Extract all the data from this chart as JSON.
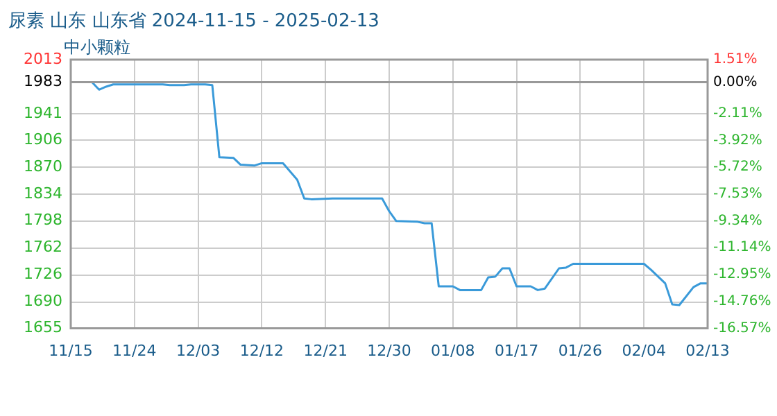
{
  "chart_data": {
    "type": "line",
    "title": "尿素 山东 山东省 2024-11-15 - 2025-02-13",
    "subtitle": "中小颗粒",
    "x": [
      "2024-11-15",
      "2024-11-18",
      "2024-11-19",
      "2024-11-20",
      "2024-11-21",
      "2024-11-28",
      "2024-11-29",
      "2024-12-01",
      "2024-12-02",
      "2024-12-04",
      "2024-12-05",
      "2024-12-06",
      "2024-12-08",
      "2024-12-09",
      "2024-12-11",
      "2024-12-12",
      "2024-12-15",
      "2024-12-17",
      "2024-12-18",
      "2024-12-19",
      "2024-12-22",
      "2024-12-29",
      "2024-12-30",
      "2024-12-31",
      "2025-01-03",
      "2025-01-04",
      "2025-01-05",
      "2025-01-06",
      "2025-01-08",
      "2025-01-09",
      "2025-01-12",
      "2025-01-13",
      "2025-01-14",
      "2025-01-15",
      "2025-01-16",
      "2025-01-17",
      "2025-01-19",
      "2025-01-20",
      "2025-01-21",
      "2025-01-23",
      "2025-01-24",
      "2025-01-25",
      "2025-02-04",
      "2025-02-05",
      "2025-02-07",
      "2025-02-08",
      "2025-02-09",
      "2025-02-11",
      "2025-02-12",
      "2025-02-13"
    ],
    "series": [
      {
        "color": "#3a9ad9",
        "values": [
          1983,
          1983,
          1973,
          1977,
          1980,
          1980,
          1979,
          1979,
          1980,
          1980,
          1979,
          1883,
          1882,
          1873,
          1872,
          1875,
          1875,
          1853,
          1828,
          1827,
          1828,
          1828,
          1811,
          1798,
          1797,
          1795,
          1795,
          1711,
          1711,
          1706,
          1706,
          1723,
          1724,
          1735,
          1735,
          1711,
          1711,
          1706,
          1708,
          1735,
          1736,
          1741,
          1741,
          1733,
          1715,
          1687,
          1686,
          1710,
          1715,
          1715
        ]
      }
    ],
    "xlim": [
      "2024-11-15",
      "2025-02-13"
    ],
    "xticks": [
      {
        "value": "2024-11-15",
        "label": "11/15"
      },
      {
        "value": "2024-11-24",
        "label": "11/24"
      },
      {
        "value": "2024-12-03",
        "label": "12/03"
      },
      {
        "value": "2024-12-12",
        "label": "12/12"
      },
      {
        "value": "2024-12-21",
        "label": "12/21"
      },
      {
        "value": "2024-12-30",
        "label": "12/30"
      },
      {
        "value": "2025-01-08",
        "label": "01/08"
      },
      {
        "value": "2025-01-17",
        "label": "01/17"
      },
      {
        "value": "2025-01-26",
        "label": "01/26"
      },
      {
        "value": "2025-02-04",
        "label": "02/04"
      },
      {
        "value": "2025-02-13",
        "label": "02/13"
      }
    ],
    "ylim": [
      1655,
      2013
    ],
    "yticks": [
      1655,
      1690,
      1726,
      1762,
      1798,
      1834,
      1870,
      1906,
      1941,
      1983,
      2013
    ],
    "y2lim": [
      -16.57,
      1.51
    ],
    "y2ticks": [
      {
        "value": -16.57,
        "label": "-16.57%"
      },
      {
        "value": -14.76,
        "label": "-14.76%"
      },
      {
        "value": -12.95,
        "label": "-12.95%"
      },
      {
        "value": -11.14,
        "label": "-11.14%"
      },
      {
        "value": -9.34,
        "label": "-9.34%"
      },
      {
        "value": -7.53,
        "label": "-7.53%"
      },
      {
        "value": -5.72,
        "label": "-5.72%"
      },
      {
        "value": -3.92,
        "label": "-3.92%"
      },
      {
        "value": -2.11,
        "label": "-2.11%"
      },
      {
        "value": 0,
        "label": "0.00%"
      },
      {
        "value": 1.51,
        "label": "1.51%"
      }
    ],
    "ref_lines": [
      {
        "axis": "y",
        "value": 1983,
        "color": "#999999"
      }
    ],
    "grid": true,
    "legend": false,
    "marker": "none",
    "line_style": "solid"
  }
}
